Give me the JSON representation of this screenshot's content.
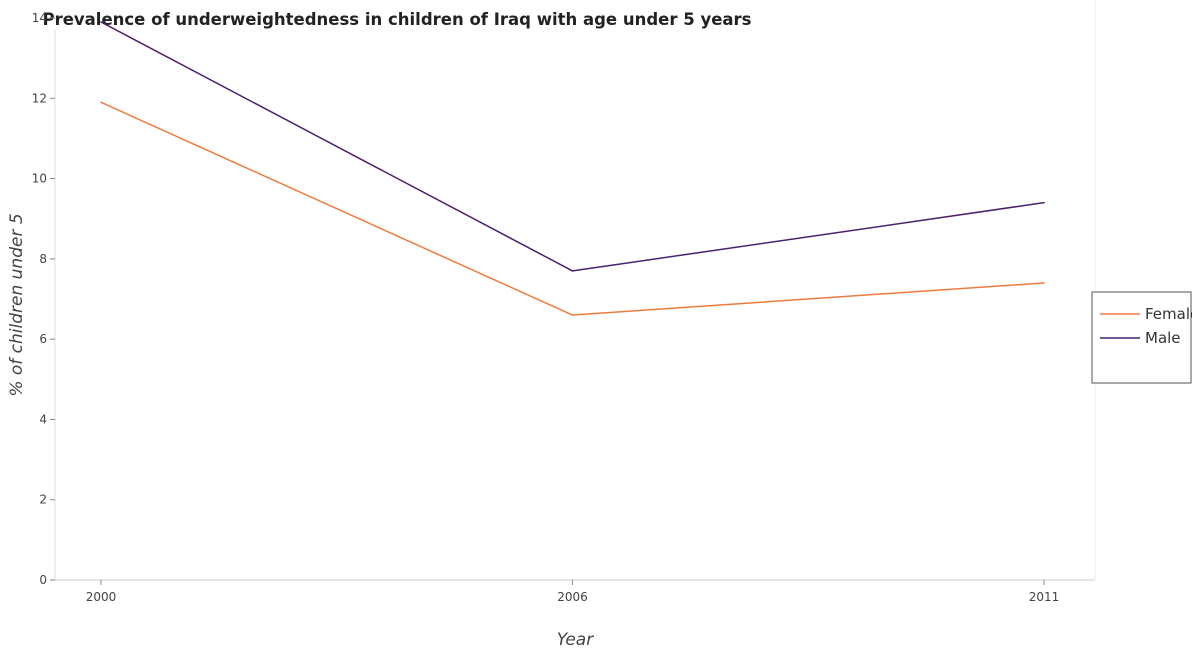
{
  "chart_data": {
    "type": "line",
    "title": "Prevalence of underweightedness in children of Iraq with age under 5 years",
    "xlabel": "Year",
    "ylabel": "% of children under 5",
    "x": [
      "2000",
      "2006",
      "2011"
    ],
    "ylim": [
      0,
      14
    ],
    "yticks": [
      "0",
      "2",
      "4",
      "6",
      "8",
      "10",
      "12",
      "14"
    ],
    "series": [
      {
        "name": "Female",
        "color": "#f07b3f",
        "values": [
          11.9,
          6.6,
          7.4
        ]
      },
      {
        "name": "Male",
        "color": "#4b1f6f",
        "values": [
          13.9,
          7.7,
          9.4
        ]
      }
    ],
    "grid": false,
    "legend": "right"
  }
}
